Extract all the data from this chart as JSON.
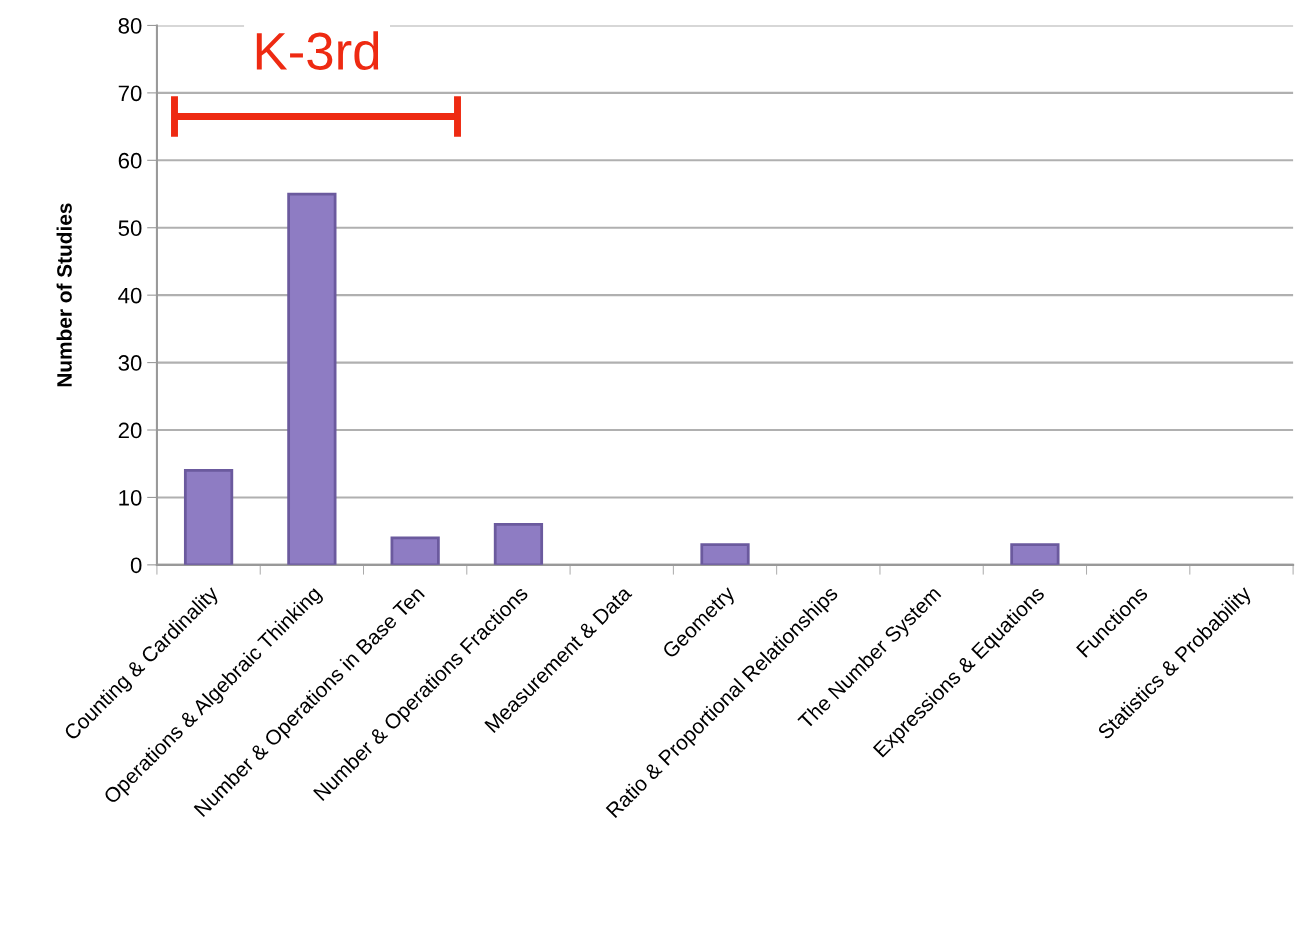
{
  "chart_data": {
    "type": "bar",
    "ylabel": "Number of Studies",
    "categories": [
      "Counting & Cardinality",
      "Operations & Algebraic Thinking",
      "Number & Operations in Base Ten",
      "Number & Operations Fractions",
      "Measurement & Data",
      "Geometry",
      "Ratio & Proportional Relationships",
      "The Number System",
      "Expressions & Equations",
      "Functions",
      "Statistics & Probability"
    ],
    "values": [
      14,
      55,
      4,
      6,
      0,
      3,
      0,
      0,
      3,
      0,
      0
    ],
    "color": "#8e7cc3",
    "ylim": [
      0,
      80
    ],
    "yticks": [
      0,
      10,
      20,
      30,
      40,
      50,
      60,
      70,
      80
    ],
    "grid": "y",
    "annotations": [
      "K-3rd"
    ]
  }
}
